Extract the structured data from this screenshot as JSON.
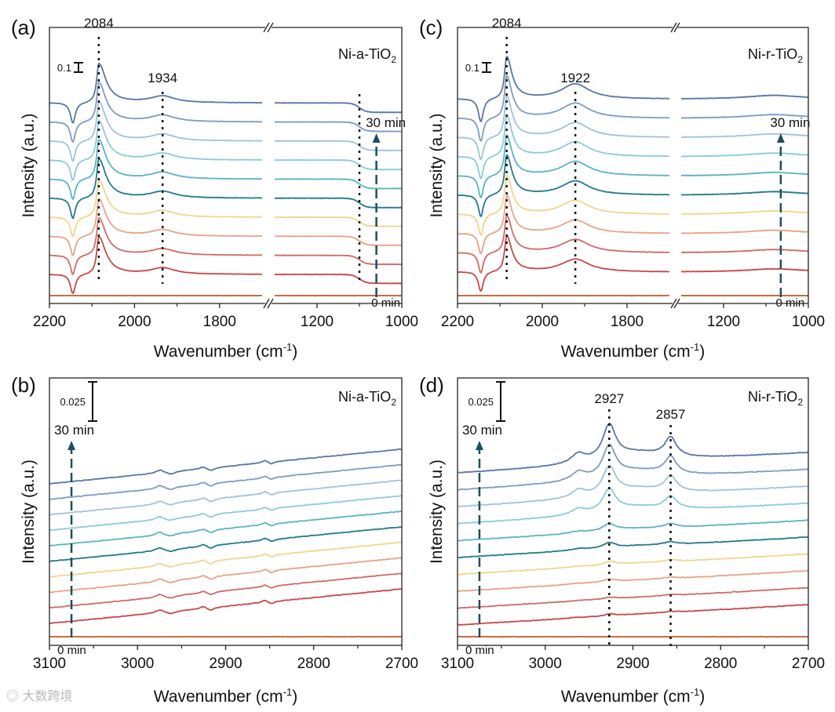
{
  "watermark": "大数跨境",
  "colors": [
    "#c65a2e",
    "#c6494a",
    "#cf6b67",
    "#e6a486",
    "#f2d58e",
    "#257a88",
    "#5cb3c4",
    "#8ccbd8",
    "#a0c3d9",
    "#7e9bc3",
    "#5a76a8"
  ],
  "chart_data": [
    {
      "type": "line",
      "panel": "(a)",
      "sample": {
        "main": "Ni-a-TiO",
        "sub": "2"
      },
      "xlabel": {
        "main": "Wavenumber (cm",
        "sup": "-1",
        "end": ")"
      },
      "ylabel": "Intensity (a.u.)",
      "x_segments": [
        [
          2200,
          1700
        ],
        [
          1300,
          1000
        ]
      ],
      "xticks": [
        2200,
        2000,
        1800,
        1200,
        1000
      ],
      "minor_xticks": [
        2100,
        1900,
        1100
      ],
      "scale_bar": "0.1",
      "time_start": "0 min",
      "time_end": "30 min",
      "time_marker_x": 1060,
      "peak_labels": [
        {
          "x": 2084,
          "text": "2084"
        },
        {
          "x": 1934,
          "text": "1934"
        }
      ],
      "dotted_lines": [
        2084,
        1934,
        1100
      ],
      "series_count": 11,
      "intensity_factors": [
        0.95,
        0.95,
        0.95,
        0.96,
        1,
        1,
        1,
        1,
        1,
        1
      ],
      "bands": [
        {
          "center": 2145,
          "amp": -0.22,
          "width": 7
        },
        {
          "center": 2084,
          "amp": 0.42,
          "width": 6,
          "width_low": 20
        },
        {
          "center": 1934,
          "amp": 0.07,
          "width": 35
        }
      ],
      "step": {
        "center": 1100,
        "amp": -0.1,
        "width": 8
      },
      "baseline_slope": 0,
      "noise": 0.004
    },
    {
      "type": "line",
      "panel": "(b)",
      "sample": {
        "main": "Ni-a-TiO",
        "sub": "2"
      },
      "xlabel": {
        "main": "Wavenumber (cm",
        "sup": "-1",
        "end": ")"
      },
      "ylabel": "Intensity (a.u.)",
      "x_segments": [
        [
          3100,
          2700
        ]
      ],
      "xticks": [
        3100,
        3000,
        2900,
        2800,
        2700
      ],
      "minor_xticks": [
        3050,
        2950,
        2850,
        2750
      ],
      "scale_bar": "0.025",
      "time_start": "0 min",
      "time_end": "30 min",
      "time_marker_x": 3075,
      "peak_labels": [],
      "dotted_lines": [],
      "series_count": 11,
      "intensity_factors": [
        1,
        1,
        1,
        1,
        1,
        1,
        1,
        1,
        1,
        1
      ],
      "bands": [
        {
          "center": 2975,
          "amp": 0.002,
          "width": 5
        },
        {
          "center": 2962,
          "amp": -0.0015,
          "width": 6
        },
        {
          "center": 2925,
          "amp": 0.0015,
          "width": 5
        },
        {
          "center": 2917,
          "amp": -0.002,
          "width": 5
        },
        {
          "center": 2855,
          "amp": 0.0015,
          "width": 4
        },
        {
          "center": 2848,
          "amp": -0.0015,
          "width": 4
        }
      ],
      "baseline_slope": 5.5e-05,
      "noise": 0.0004
    },
    {
      "type": "line",
      "panel": "(c)",
      "sample": {
        "main": "Ni-r-TiO",
        "sub": "2"
      },
      "xlabel": {
        "main": "Wavenumber (cm",
        "sup": "-1",
        "end": ")"
      },
      "ylabel": "Intensity (a.u.)",
      "x_segments": [
        [
          2200,
          1700
        ],
        [
          1300,
          1000
        ]
      ],
      "xticks": [
        2200,
        2000,
        1800,
        1200,
        1000
      ],
      "minor_xticks": [
        2100,
        1900,
        1100
      ],
      "scale_bar": "0.1",
      "time_start": "0 min",
      "time_end": "30 min",
      "time_marker_x": 1065,
      "peak_labels": [
        {
          "x": 2084,
          "text": "2084"
        },
        {
          "x": 1922,
          "text": "1922"
        }
      ],
      "dotted_lines": [
        2084,
        1922
      ],
      "series_count": 11,
      "intensity_factors": [
        0.85,
        0.88,
        0.9,
        0.92,
        0.94,
        0.96,
        0.97,
        0.98,
        1,
        1
      ],
      "bands": [
        {
          "center": 2145,
          "amp": -0.25,
          "width": 7
        },
        {
          "center": 2084,
          "amp": 0.45,
          "width": 6,
          "width_low": 15
        },
        {
          "center": 1922,
          "amp": 0.16,
          "width": 40
        },
        {
          "center": 1080,
          "amp": 0.04,
          "width": 80
        }
      ],
      "baseline_slope": 0,
      "noise": 0.004
    },
    {
      "type": "line",
      "panel": "(d)",
      "sample": {
        "main": "Ni-r-TiO",
        "sub": "2"
      },
      "xlabel": {
        "main": "Wavenumber (cm",
        "sup": "-1",
        "end": ")"
      },
      "ylabel": "Intensity (a.u.)",
      "x_segments": [
        [
          3100,
          2700
        ]
      ],
      "xticks": [
        3100,
        3000,
        2900,
        2800,
        2700
      ],
      "minor_xticks": [
        3050,
        2950,
        2850,
        2750
      ],
      "scale_bar": "0.025",
      "time_start": "0 min",
      "time_end": "30 min",
      "time_marker_x": 3075,
      "peak_labels": [
        {
          "x": 2927,
          "text": "2927"
        },
        {
          "x": 2857,
          "text": "2857"
        }
      ],
      "dotted_lines": [
        2927,
        2857
      ],
      "series_count": 11,
      "intensity_factors": [
        0.05,
        0.05,
        0.08,
        0.1,
        0.15,
        0.2,
        0.65,
        0.8,
        0.9,
        1
      ],
      "bands": [
        {
          "center": 2927,
          "amp": 0.022,
          "width": 9
        },
        {
          "center": 2857,
          "amp": 0.012,
          "width": 8
        },
        {
          "center": 2962,
          "amp": 0.006,
          "width": 10
        },
        {
          "center": 2895,
          "amp": 0.006,
          "width": 40
        }
      ],
      "baseline_slope": 3.25e-05,
      "noise": 0.0004
    }
  ]
}
